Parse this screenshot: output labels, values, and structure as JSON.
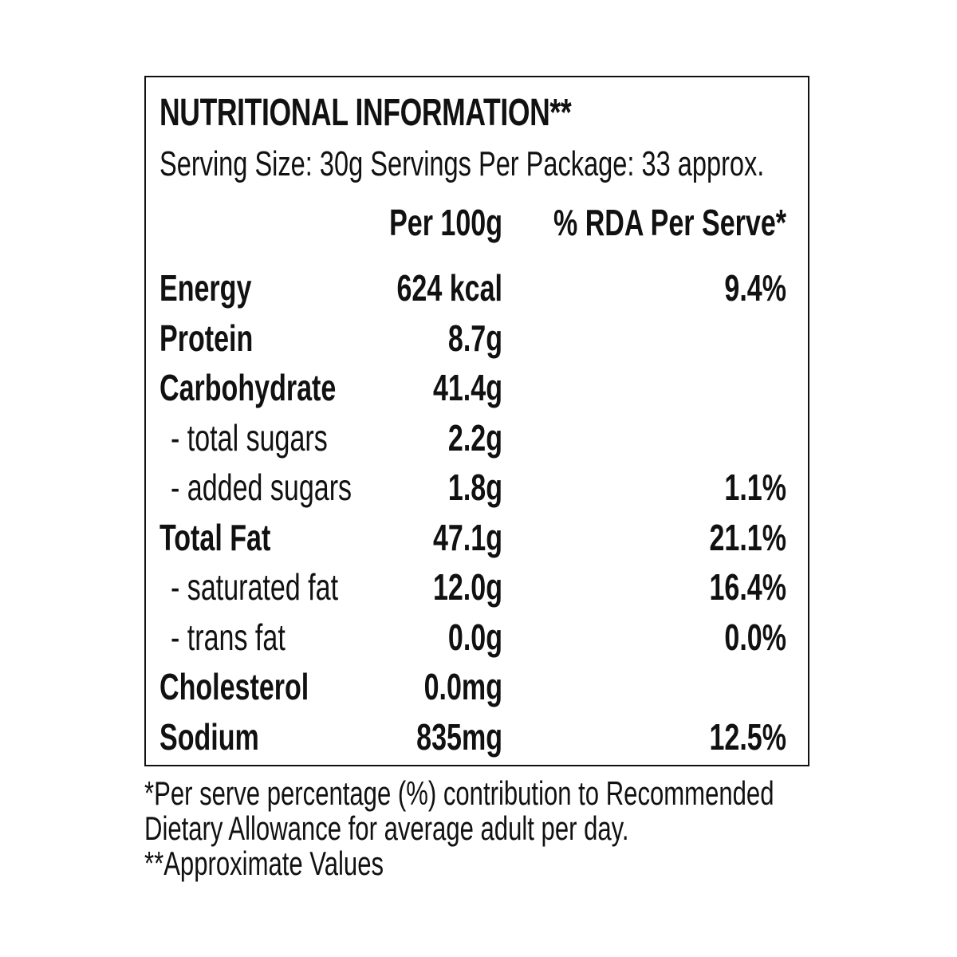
{
  "label": {
    "title": "NUTRITIONAL INFORMATION**",
    "serving_line": "Serving Size: 30g  Servings Per Package: 33 approx.",
    "col_per_100g": "Per 100g",
    "col_rda": "% RDA Per Serve*"
  },
  "rows": [
    {
      "name": "Energy",
      "value": "624 kcal",
      "rda": "9.4%",
      "kind": "main"
    },
    {
      "name": "Protein",
      "value": "8.7g",
      "rda": "",
      "kind": "main"
    },
    {
      "name": "Carbohydrate",
      "value": "41.4g",
      "rda": "",
      "kind": "main"
    },
    {
      "name": "- total sugars",
      "value": "2.2g",
      "rda": "",
      "kind": "sub"
    },
    {
      "name": "- added sugars",
      "value": "1.8g",
      "rda": "1.1%",
      "kind": "sub"
    },
    {
      "name": "Total Fat",
      "value": "47.1g",
      "rda": "21.1%",
      "kind": "main"
    },
    {
      "name": "- saturated fat",
      "value": "12.0g",
      "rda": "16.4%",
      "kind": "sub"
    },
    {
      "name": "- trans fat",
      "value": "0.0g",
      "rda": "0.0%",
      "kind": "sub"
    },
    {
      "name": "Cholesterol",
      "value": "0.0mg",
      "rda": "",
      "kind": "main"
    },
    {
      "name": "Sodium",
      "value": "835mg",
      "rda": "12.5%",
      "kind": "main"
    }
  ],
  "footnotes": {
    "line1": "*Per serve percentage (%) contribution to Recommended",
    "line2": "Dietary Allowance for average adult per day.",
    "line3": "**Approximate Values"
  },
  "colors": {
    "text": "#111111",
    "border": "#111111",
    "background": "#ffffff"
  }
}
